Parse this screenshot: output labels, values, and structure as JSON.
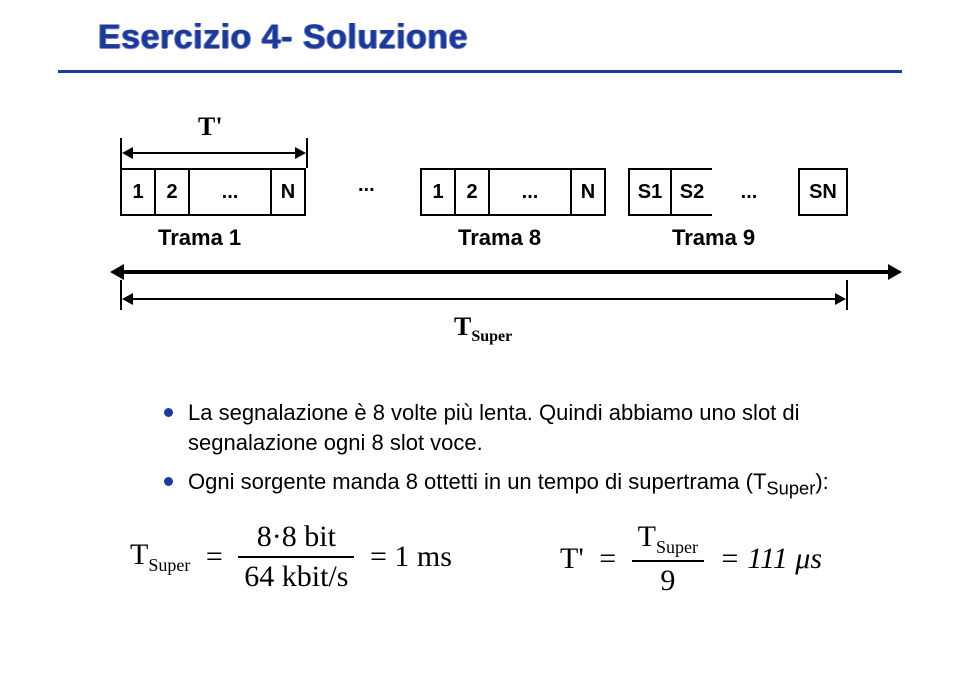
{
  "title": "Esercizio 4- Soluzione",
  "colors": {
    "accent": "#1d3a99",
    "text": "#000000",
    "background": "#ffffff"
  },
  "diagram": {
    "top_arrow_label": "T'",
    "frames": {
      "frame1": {
        "label": "Trama 1",
        "cells": [
          "1",
          "2",
          "...",
          "N"
        ]
      },
      "ellipsis": "...",
      "frame8": {
        "label": "Trama 8",
        "cells": [
          "1",
          "2",
          "...",
          "N"
        ]
      },
      "frame9": {
        "label": "Trama 9",
        "cells": [
          "S1",
          "S2",
          "...",
          "SN"
        ]
      }
    },
    "super_label_html": "T<sub>Super</sub>"
  },
  "bullets": [
    "La segnalazione è 8 volte più lenta. Quindi abbiamo uno slot di segnalazione ogni 8 slot voce.",
    "Ogni sorgente manda 8 ottetti in un tempo di supertrama (T<sub>Super</sub>):"
  ],
  "formula1": {
    "lhs_html": "T<sub>Super</sub>",
    "eq": "=",
    "frac_num": "8·8 bit",
    "frac_den": "64 kbit/s",
    "rhs": "= 1 ms"
  },
  "formula2": {
    "lhs": "T'",
    "eq": "=",
    "frac_num_html": "T<sub>Super</sub>",
    "frac_den": "9",
    "rhs": "= 111 μs"
  }
}
